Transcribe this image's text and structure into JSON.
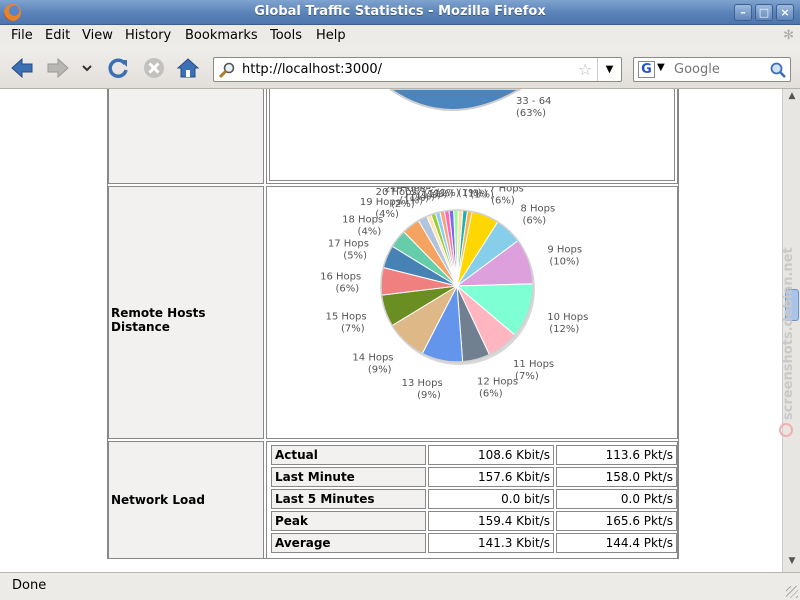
{
  "window": {
    "title": "Global Traffic Statistics - Mozilla Firefox"
  },
  "menu": [
    "File",
    "Edit",
    "View",
    "History",
    "Bookmarks",
    "Tools",
    "Help"
  ],
  "navbar": {
    "url": "http://localhost:3000/",
    "search_placeholder": "Google",
    "search_engine_letter": "G"
  },
  "status": {
    "text": "Done"
  },
  "watermark": "screenshots.debian.net",
  "prev_chart": {
    "label": "33 - 64",
    "pct": "(63%)",
    "color": "#4a86bd"
  },
  "sections": {
    "remote_hosts_label": "Remote Hosts Distance",
    "network_load_label": "Network Load"
  },
  "chart_data": {
    "type": "pie",
    "slices": [
      {
        "label": "7 Hops",
        "pct": 6,
        "color": "#ffd700"
      },
      {
        "label": "8 Hops",
        "pct": 6,
        "color": "#87ceeb"
      },
      {
        "label": "9 Hops",
        "pct": 10,
        "color": "#dda0dd"
      },
      {
        "label": "10 Hops",
        "pct": 12,
        "color": "#7fffd4"
      },
      {
        "label": "11 Hops",
        "pct": 7,
        "color": "#ffb6c1"
      },
      {
        "label": "12 Hops",
        "pct": 6,
        "color": "#708090"
      },
      {
        "label": "13 Hops",
        "pct": 9,
        "color": "#6495ed"
      },
      {
        "label": "14 Hops",
        "pct": 9,
        "color": "#deb887"
      },
      {
        "label": "15 Hops",
        "pct": 7,
        "color": "#6b8e23"
      },
      {
        "label": "16 Hops",
        "pct": 6,
        "color": "#f08080"
      },
      {
        "label": "17 Hops",
        "pct": 5,
        "color": "#4682b4"
      },
      {
        "label": "18 Hops",
        "pct": 4,
        "color": "#66cdaa"
      },
      {
        "label": "19 Hops",
        "pct": 4,
        "color": "#f4a460"
      },
      {
        "label": "20 Hops",
        "pct": 2,
        "color": "#b0c4de"
      },
      {
        "label": "21 Hops",
        "pct": 1,
        "color": "#ffe4b5"
      },
      {
        "label": "22 Hops",
        "pct": 1,
        "color": "#9acd32"
      },
      {
        "label": "23 Hops",
        "pct": 1,
        "color": "#87cefa"
      },
      {
        "label": "24 Hops",
        "pct": 1,
        "color": "#ffa07a"
      },
      {
        "label": "1 Hops",
        "pct": 1,
        "color": "#ff69b4"
      },
      {
        "label": "2 Hops",
        "pct": 1,
        "color": "#7b68ee"
      },
      {
        "label": "3 Hops",
        "pct": 1,
        "color": "#98fb98"
      },
      {
        "label": "4 Hops",
        "pct": 1,
        "color": "#ffdead"
      },
      {
        "label": "5 Hops",
        "pct": 1,
        "color": "#20b2aa"
      },
      {
        "label": "6 Hops",
        "pct": 1,
        "color": "#ffb347"
      }
    ]
  },
  "network_load": {
    "rows": [
      {
        "label": "Actual",
        "bits": "108.6 Kbit/s",
        "pkts": "113.6 Pkt/s"
      },
      {
        "label": "Last Minute",
        "bits": "157.6 Kbit/s",
        "pkts": "158.0 Pkt/s"
      },
      {
        "label": "Last 5 Minutes",
        "bits": "0.0 bit/s",
        "pkts": "0.0 Pkt/s"
      },
      {
        "label": "Peak",
        "bits": "159.4 Kbit/s",
        "pkts": "165.6 Pkt/s"
      },
      {
        "label": "Average",
        "bits": "141.3 Kbit/s",
        "pkts": "144.4 Pkt/s"
      }
    ]
  }
}
